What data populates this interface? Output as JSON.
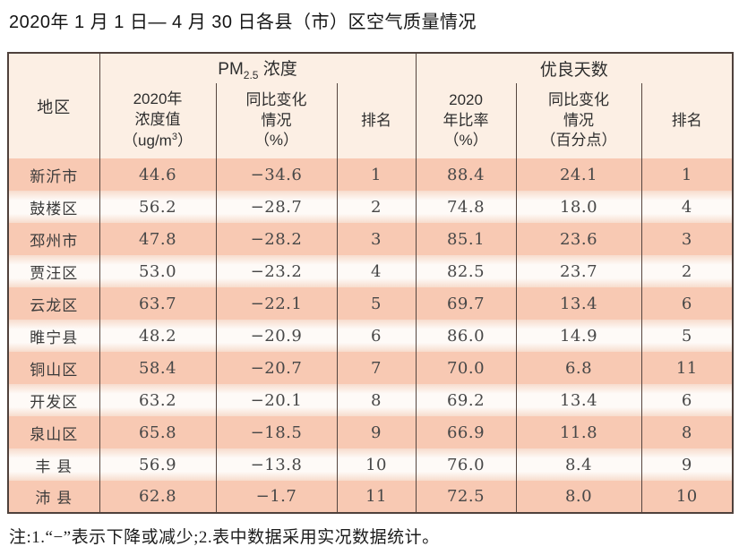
{
  "title": "2020年 1 月 1 日— 4 月 30 日各县（市）区空气质量情况",
  "table": {
    "region_header": "地区",
    "pm_group": {
      "base": "PM",
      "sub": "2.5",
      "rest": " 浓度"
    },
    "good_group": "优良天数",
    "sub_headers": {
      "pm_value": {
        "l1": "2020年",
        "l2": "浓度值",
        "l3_pre": "（ug/m",
        "l3_sup": "3",
        "l3_post": "）"
      },
      "pm_change": {
        "l1": "同比变化",
        "l2": "情况",
        "l3": "（%）"
      },
      "pm_rank": "排名",
      "good_rate": {
        "l1": "2020",
        "l2": "年比率",
        "l3": "（%）"
      },
      "good_change": {
        "l1": "同比变化",
        "l2": "情况",
        "l3": "（百分点）"
      },
      "good_rank": "排名"
    }
  },
  "rows": [
    {
      "region": "新沂市",
      "pm_value": "44.6",
      "pm_change": "−34.6",
      "pm_rank": "1",
      "good_rate": "88.4",
      "good_change": "24.1",
      "good_rank": "1"
    },
    {
      "region": "鼓楼区",
      "pm_value": "56.2",
      "pm_change": "−28.7",
      "pm_rank": "2",
      "good_rate": "74.8",
      "good_change": "18.0",
      "good_rank": "4"
    },
    {
      "region": "邳州市",
      "pm_value": "47.8",
      "pm_change": "−28.2",
      "pm_rank": "3",
      "good_rate": "85.1",
      "good_change": "23.6",
      "good_rank": "3"
    },
    {
      "region": "贾汪区",
      "pm_value": "53.0",
      "pm_change": "−23.2",
      "pm_rank": "4",
      "good_rate": "82.5",
      "good_change": "23.7",
      "good_rank": "2"
    },
    {
      "region": "云龙区",
      "pm_value": "63.7",
      "pm_change": "−22.1",
      "pm_rank": "5",
      "good_rate": "69.7",
      "good_change": "13.4",
      "good_rank": "6"
    },
    {
      "region": "睢宁县",
      "pm_value": "48.2",
      "pm_change": "−20.9",
      "pm_rank": "6",
      "good_rate": "86.0",
      "good_change": "14.9",
      "good_rank": "5"
    },
    {
      "region": "铜山区",
      "pm_value": "58.4",
      "pm_change": "−20.7",
      "pm_rank": "7",
      "good_rate": "70.0",
      "good_change": "6.8",
      "good_rank": "11"
    },
    {
      "region": "开发区",
      "pm_value": "63.2",
      "pm_change": "−20.1",
      "pm_rank": "8",
      "good_rate": "69.2",
      "good_change": "13.4",
      "good_rank": "6"
    },
    {
      "region": "泉山区",
      "pm_value": "65.8",
      "pm_change": "−18.5",
      "pm_rank": "9",
      "good_rate": "66.9",
      "good_change": "11.8",
      "good_rank": "8"
    },
    {
      "region": "丰 县",
      "pm_value": "56.9",
      "pm_change": "−13.8",
      "pm_rank": "10",
      "good_rate": "76.0",
      "good_change": "8.4",
      "good_rank": "9"
    },
    {
      "region": "沛 县",
      "pm_value": "62.8",
      "pm_change": "−1.7",
      "pm_rank": "11",
      "good_rate": "72.5",
      "good_change": "8.0",
      "good_rank": "10"
    }
  ],
  "note": "注:1.“−”表示下降或减少;2.表中数据采用实况数据统计。",
  "colors": {
    "row_salmon": "#f8c9b3",
    "row_light": "#fdf6f1",
    "header_bg": "#fcefe4",
    "border": "#4f413c",
    "group_underline": "#4a4a4a"
  }
}
